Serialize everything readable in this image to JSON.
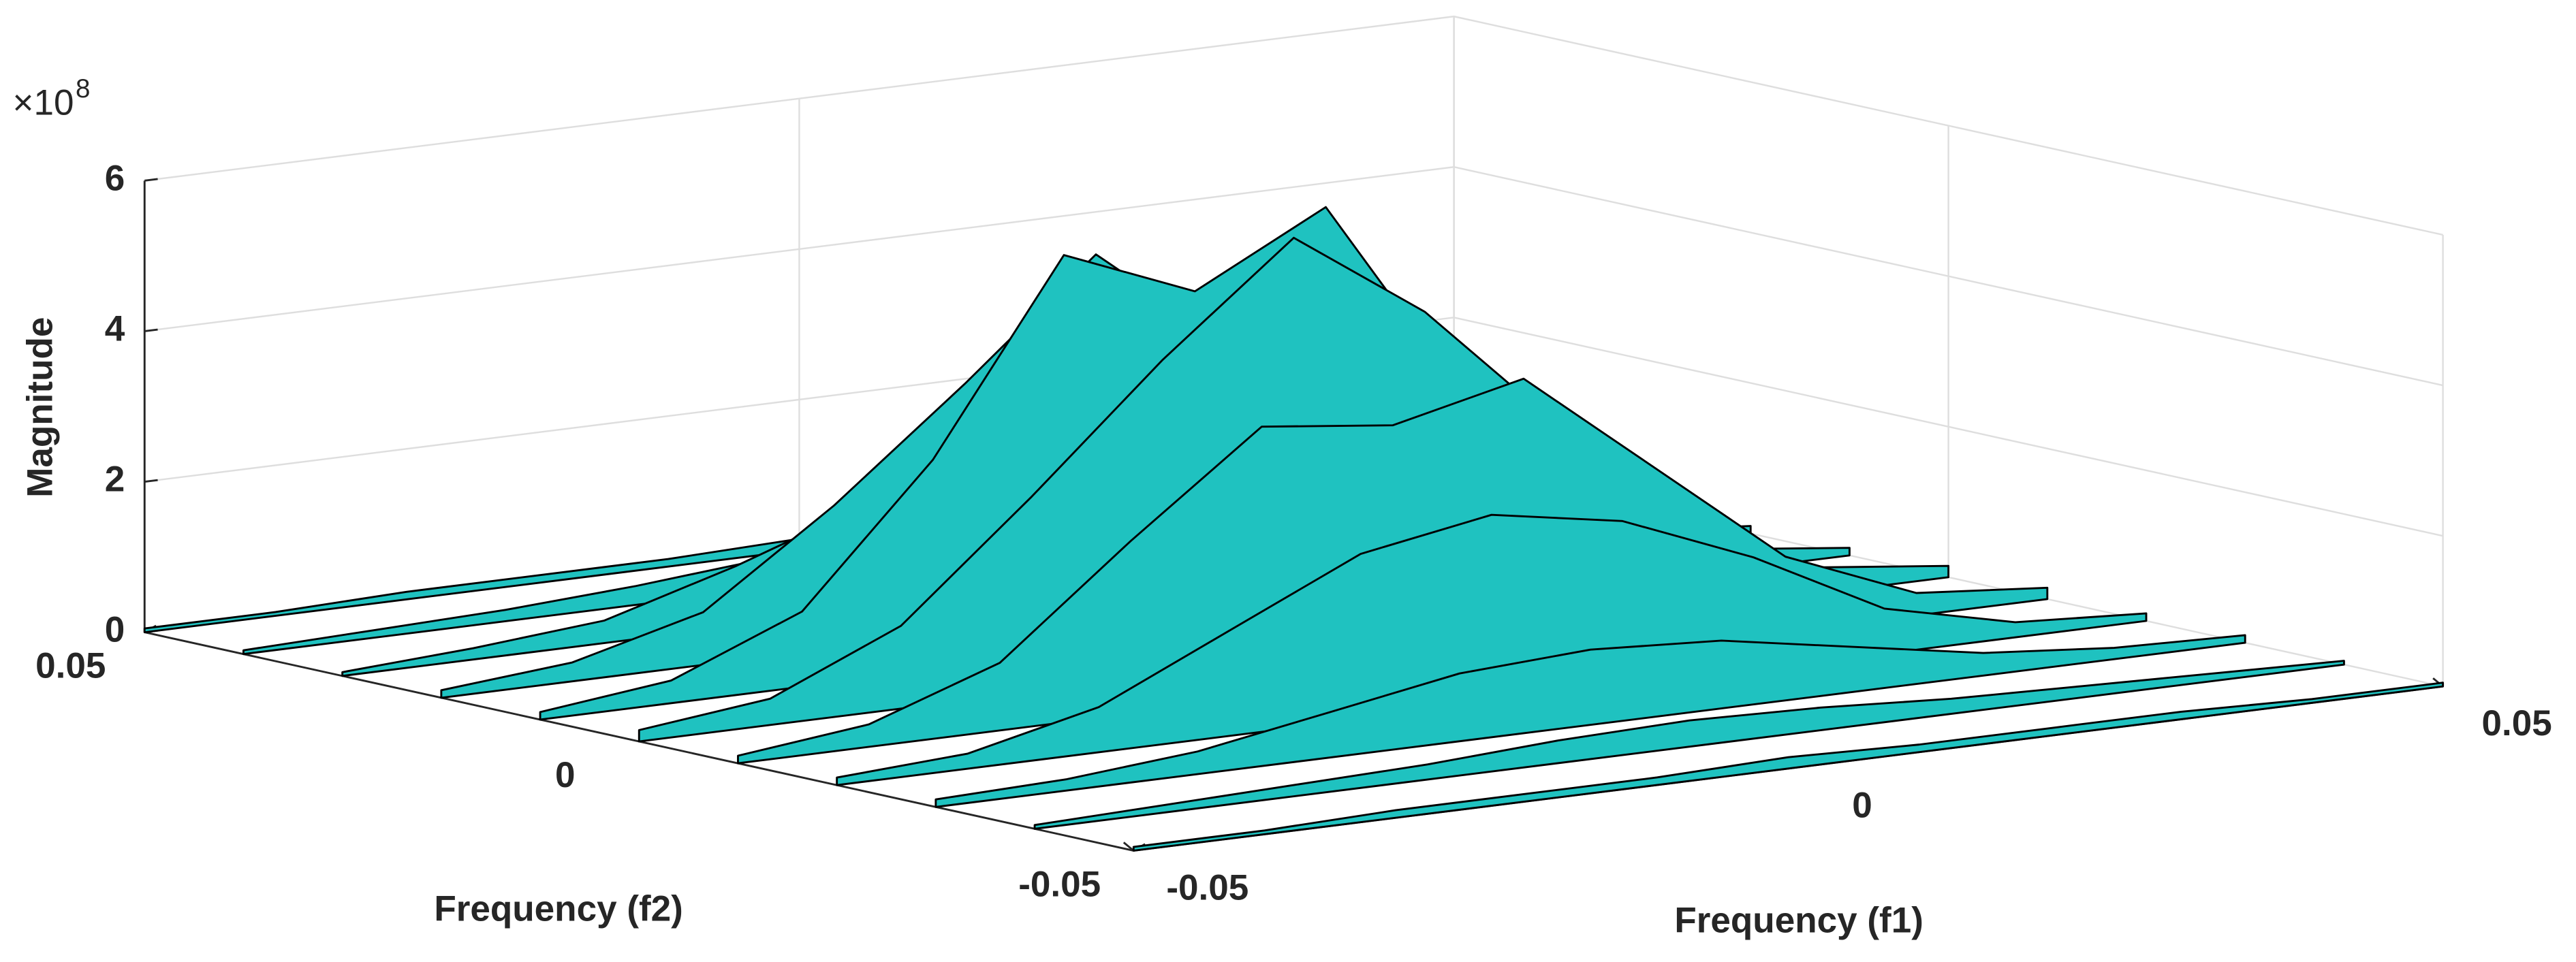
{
  "chart_data": {
    "type": "surface",
    "xlabel": "Frequency (f1)",
    "ylabel": "Frequency (f2)",
    "zlabel": "Magnitude",
    "z_multiplier": "×10",
    "z_exponent": 8,
    "x": [
      -0.05,
      -0.04,
      -0.03,
      -0.02,
      -0.01,
      0,
      0.01,
      0.02,
      0.03,
      0.04,
      0.05
    ],
    "y": [
      -0.05,
      -0.04,
      -0.03,
      -0.02,
      -0.01,
      0,
      0.01,
      0.02,
      0.03,
      0.04,
      0.05
    ],
    "z": [
      [
        0.05,
        0.05,
        0.1,
        0.1,
        0.1,
        0.15,
        0.1,
        0.1,
        0.1,
        0.05,
        0.05
      ],
      [
        0.05,
        0.1,
        0.15,
        0.2,
        0.3,
        0.35,
        0.3,
        0.2,
        0.15,
        0.1,
        0.05
      ],
      [
        0.1,
        0.15,
        0.3,
        0.6,
        0.9,
        1.0,
        0.9,
        0.6,
        0.3,
        0.15,
        0.1
      ],
      [
        0.1,
        0.2,
        0.6,
        1.4,
        2.2,
        2.5,
        2.2,
        1.5,
        0.6,
        0.2,
        0.1
      ],
      [
        0.1,
        0.3,
        0.9,
        2.3,
        3.6,
        3.4,
        3.8,
        2.4,
        1.0,
        0.3,
        0.15
      ],
      [
        0.15,
        0.35,
        1.1,
        2.6,
        4.2,
        5.6,
        4.4,
        2.7,
        1.1,
        0.35,
        0.15
      ],
      [
        0.1,
        0.3,
        1.0,
        2.8,
        5.3,
        4.6,
        5.5,
        2.9,
        1.0,
        0.3,
        0.1
      ],
      [
        0.1,
        0.25,
        0.7,
        1.9,
        3.3,
        4.8,
        3.4,
        2.0,
        0.7,
        0.25,
        0.1
      ],
      [
        0.05,
        0.15,
        0.3,
        0.8,
        1.4,
        1.8,
        1.5,
        0.8,
        0.3,
        0.15,
        0.05
      ],
      [
        0.05,
        0.1,
        0.15,
        0.25,
        0.4,
        0.5,
        0.4,
        0.25,
        0.15,
        0.1,
        0.05
      ],
      [
        0.05,
        0.05,
        0.1,
        0.1,
        0.1,
        0.15,
        0.1,
        0.1,
        0.05,
        0.05,
        0.05
      ]
    ],
    "xlim": [
      -0.05,
      0.05
    ],
    "ylim": [
      -0.05,
      0.05
    ],
    "zlim": [
      0,
      6
    ],
    "xticks": [
      -0.05,
      0,
      0.05
    ],
    "yticks": [
      -0.05,
      0,
      0.05
    ],
    "zticks": [
      0,
      2,
      4,
      6
    ],
    "color": "#1fc2c0",
    "edgecolor": "#000000",
    "grid": true
  }
}
